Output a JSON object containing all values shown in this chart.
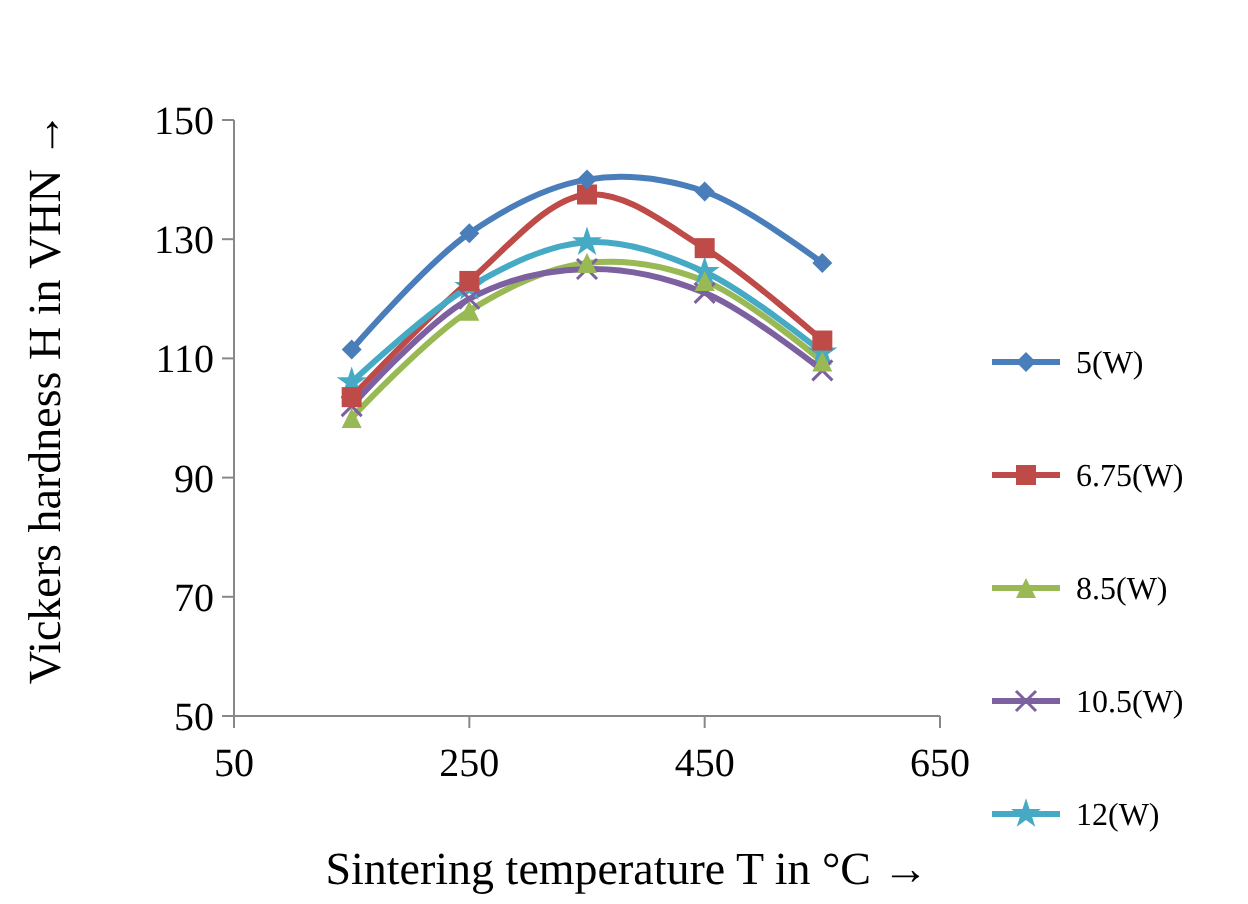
{
  "chart_data": {
    "type": "line",
    "xlabel": "Sintering temperature T in °C →",
    "ylabel": "Vickers hardness H in VHN →",
    "x": [
      150,
      250,
      350,
      450,
      550
    ],
    "xlim": [
      50,
      650
    ],
    "xticks": [
      50,
      250,
      450,
      650
    ],
    "ylim": [
      50,
      150
    ],
    "yticks": [
      50,
      70,
      90,
      110,
      130,
      150
    ],
    "grid": false,
    "legend": "right",
    "line_style": "solid",
    "series": [
      {
        "name": "5(W)",
        "color": "#4a7ebb",
        "marker": "diamond",
        "values": [
          111.5,
          131,
          140,
          138,
          126
        ]
      },
      {
        "name": "6.75(W)",
        "color": "#be4b48",
        "marker": "square",
        "values": [
          103.5,
          123,
          137.5,
          128.5,
          113
        ]
      },
      {
        "name": "8.5(W)",
        "color": "#98b954",
        "marker": "triangle",
        "values": [
          100,
          118,
          126,
          123,
          109.5
        ]
      },
      {
        "name": "10.5(W)",
        "color": "#7d60a0",
        "marker": "cross",
        "values": [
          102,
          120,
          125,
          121,
          108
        ]
      },
      {
        "name": "12(W)",
        "color": "#46aac5",
        "marker": "star",
        "values": [
          106,
          122,
          129.5,
          124.5,
          111
        ]
      }
    ]
  }
}
